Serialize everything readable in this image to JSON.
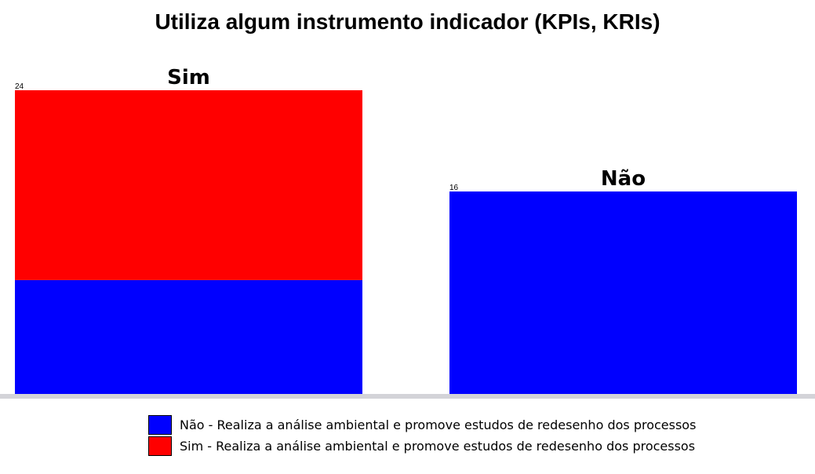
{
  "chart_data": {
    "type": "bar",
    "stacked": true,
    "title": "Utiliza algum instrumento indicador (KPIs, KRIs)",
    "categories": [
      "Sim",
      "Não"
    ],
    "totals": [
      24,
      16
    ],
    "series": [
      {
        "name": "Não - Realiza a análise ambiental e promove estudos de redesenho dos processos",
        "color": "#0000ff",
        "values": [
          9,
          16
        ]
      },
      {
        "name": "Sim - Realiza a análise ambiental e promove estudos de redesenho dos processos",
        "color": "#ff0000",
        "values": [
          15,
          0
        ]
      }
    ],
    "ylim": [
      0,
      24
    ],
    "grid": false,
    "legend_position": "bottom"
  }
}
